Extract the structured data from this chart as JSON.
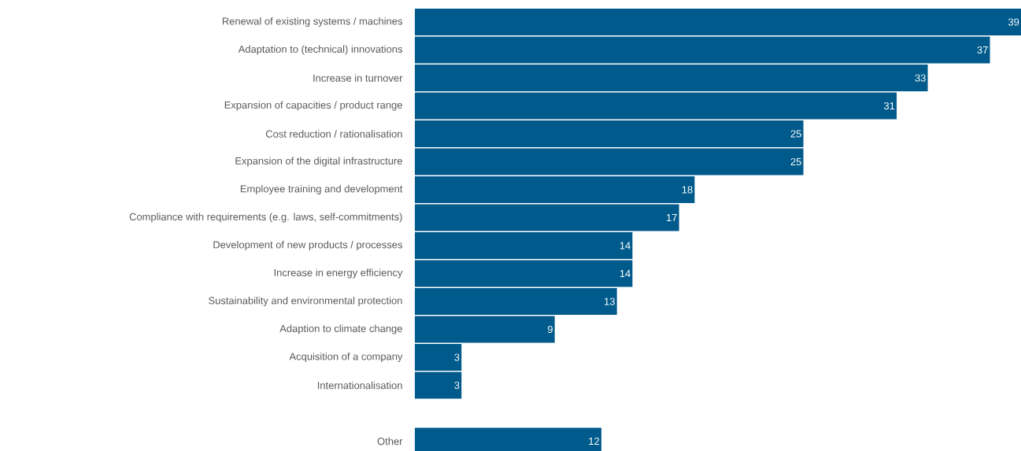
{
  "chart_data": {
    "type": "bar",
    "orientation": "horizontal",
    "data_labels": true,
    "color": "#005a8c",
    "categories": [
      "Renewal of existing systems / machines",
      "Adaptation to (technical) innovations",
      "Increase in turnover",
      "Expansion of capacities / product range",
      "Cost reduction / rationalisation",
      "Expansion of the digital infrastructure",
      "Employee training and development",
      "Compliance with requirements (e.g. laws, self-commitments)",
      "Development of new products / processes",
      "Increase in energy efficiency",
      "Sustainability and environmental protection",
      "Adaption to climate change",
      "Acquisition of a company",
      "Internationalisation",
      null,
      "Other"
    ],
    "values": [
      39,
      37,
      33,
      31,
      25,
      25,
      18,
      17,
      14,
      14,
      13,
      9,
      3,
      3,
      null,
      12
    ]
  }
}
